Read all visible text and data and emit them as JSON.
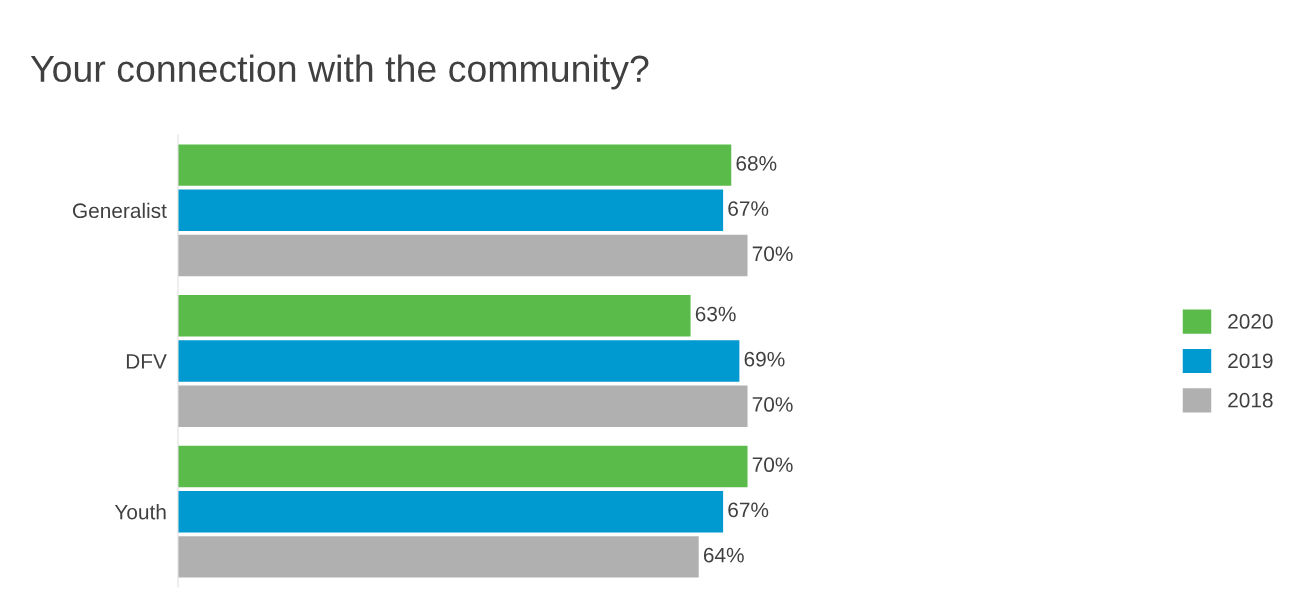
{
  "chart_data": {
    "type": "bar",
    "orientation": "horizontal",
    "title": "Your connection with the community?",
    "categories": [
      "Generalist",
      "DFV",
      "Youth"
    ],
    "series": [
      {
        "name": "2020",
        "color": "#5bbb4a",
        "values": [
          68,
          63,
          70
        ],
        "value_labels": [
          "68%",
          "63%",
          "70%"
        ]
      },
      {
        "name": "2019",
        "color": "#0099d0",
        "values": [
          67,
          69,
          67
        ],
        "value_labels": [
          "67%",
          "69%",
          "67%"
        ]
      },
      {
        "name": "2018",
        "color": "#b0b0b0",
        "values": [
          70,
          70,
          64
        ],
        "value_labels": [
          "70%",
          "70%",
          "64%"
        ]
      }
    ],
    "tick_labels": "y",
    "grid": false,
    "legend": "right"
  }
}
